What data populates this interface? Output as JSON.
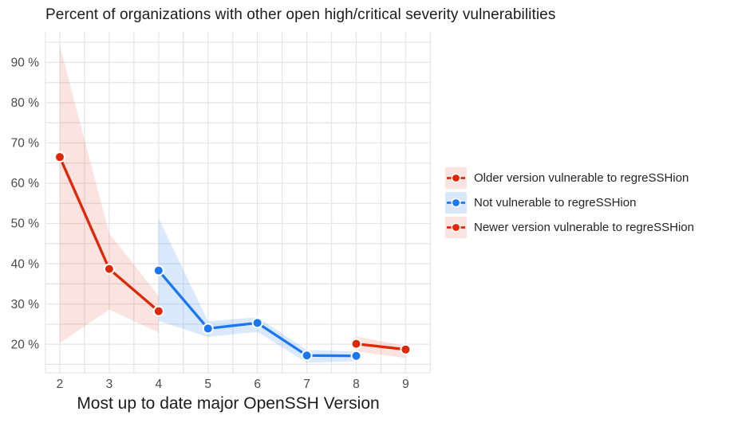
{
  "chart_data": {
    "type": "line",
    "title": "Percent of organizations with other open high/critical severity vulnerabilities",
    "xlabel": "Most up to date major OpenSSH Version",
    "ylabel": "",
    "x_ticks": [
      2,
      3,
      4,
      5,
      6,
      7,
      8,
      9
    ],
    "y_tick_values": [
      20,
      30,
      40,
      50,
      60,
      70,
      80,
      90
    ],
    "y_tick_labels": [
      "20 %",
      "30 %",
      "40 %",
      "50 %",
      "60 %",
      "70 %",
      "80 %",
      "90 %"
    ],
    "xlim": [
      1.71,
      9.51
    ],
    "ylim": [
      12.9,
      97.6
    ],
    "x_grid_step": 0.5,
    "y_grid_step": 5,
    "grid": true,
    "legend_position": "right-middle",
    "colors": {
      "red": "#df2708",
      "blue": "#1b76f2",
      "red_fill": "rgba(223,39,8,0.13)",
      "blue_fill": "rgba(27,118,242,0.16)",
      "legend_red_bg": "#fae4df",
      "legend_blue_bg": "#d8e8fa",
      "grid": "#e6e6e6",
      "axis_text": "#4a4a4a",
      "title_text": "#1c1c1c",
      "point_ring": "#ffffff"
    },
    "series": [
      {
        "name": "Older version vulnerable to regreSSHion",
        "color_key": "red",
        "x": [
          2,
          3,
          4
        ],
        "y": [
          66.5,
          38.7,
          28.2
        ],
        "ymin": [
          20.3,
          28.6,
          22.9
        ],
        "ymax": [
          94.2,
          47.5,
          32.0
        ]
      },
      {
        "name": "Not vulnerable to regreSSHion",
        "color_key": "blue",
        "x": [
          4,
          5,
          6,
          7,
          8
        ],
        "y": [
          38.3,
          23.9,
          25.3,
          17.2,
          17.1
        ],
        "ymin": [
          25.8,
          21.8,
          23.1,
          15.4,
          15.8
        ],
        "ymax": [
          51.3,
          25.7,
          26.7,
          18.6,
          18.2
        ]
      },
      {
        "name": "Newer version vulnerable to regreSSHion",
        "color_key": "red",
        "x": [
          8,
          9
        ],
        "y": [
          20.1,
          18.7
        ],
        "ymin": [
          18.2,
          16.6
        ],
        "ymax": [
          21.9,
          19.6
        ]
      }
    ]
  }
}
